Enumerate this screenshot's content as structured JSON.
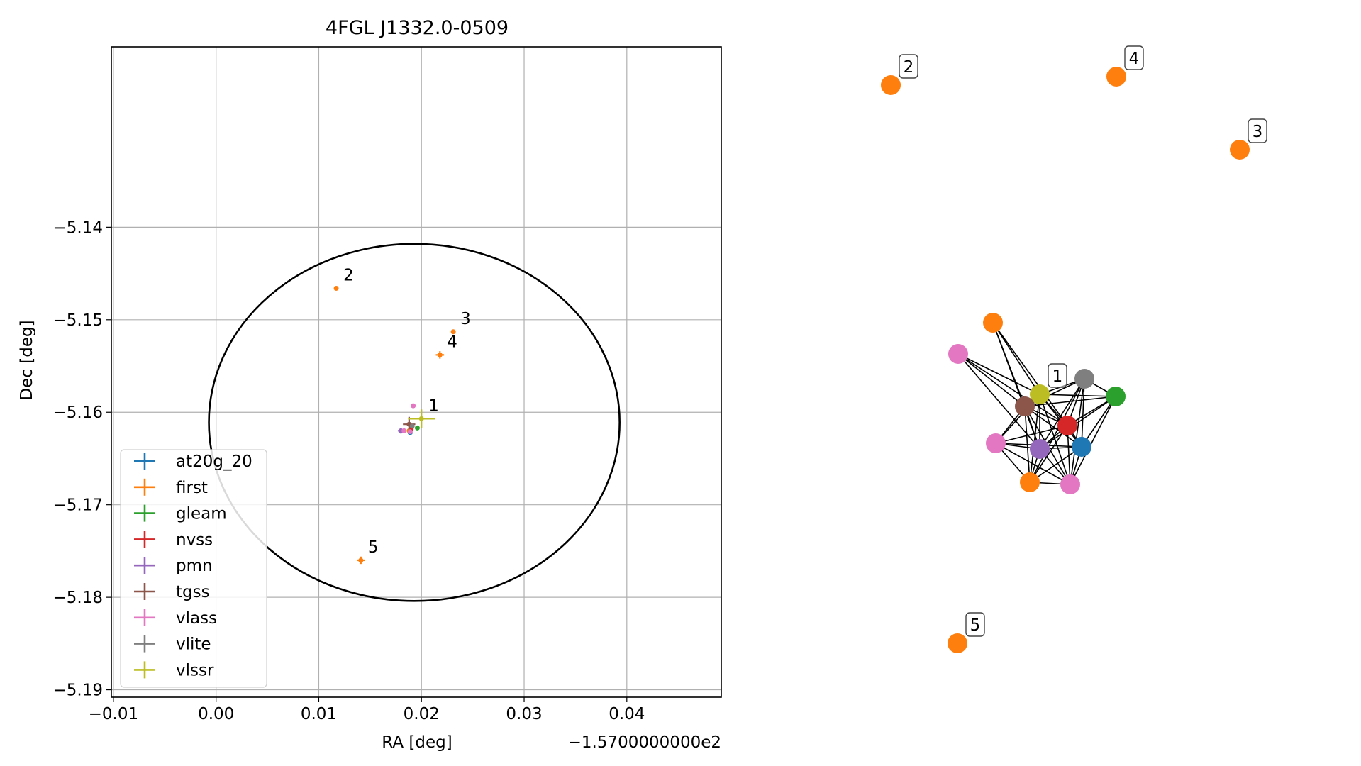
{
  "chart_data": [
    {
      "type": "scatter",
      "title": "4FGL J1332.0-0509",
      "xlabel": "RA [deg]",
      "ylabel": "Dec [deg]",
      "x_offset_label": "−1.5700000000e2",
      "xlim": [
        -0.0102,
        0.0492
      ],
      "ylim": [
        -5.1908,
        -5.1205
      ],
      "x_ticks": [
        -0.01,
        0.0,
        0.01,
        0.02,
        0.03,
        0.04
      ],
      "x_tick_labels": [
        "−0.01",
        "0.00",
        "0.01",
        "0.02",
        "0.03",
        "0.04"
      ],
      "y_ticks": [
        -5.14,
        -5.15,
        -5.16,
        -5.17,
        -5.18,
        -5.19
      ],
      "y_tick_labels": [
        "−5.14",
        "−5.15",
        "−5.16",
        "−5.17",
        "−5.18",
        "−5.19"
      ],
      "grid": true,
      "legend_position": "lower-left",
      "circle": {
        "center": [
          0.0193,
          -5.1611
        ],
        "radius_x": 0.02,
        "radius_y": 0.0193
      },
      "series": [
        {
          "name": "at20g_20",
          "color": "#1f77b4",
          "points": [
            {
              "x": 0.0189,
              "y": -5.1622,
              "ex": 0.0002,
              "ey": 0.0002
            }
          ]
        },
        {
          "name": "first",
          "color": "#ff7f0e",
          "points": [
            {
              "x": 0.0117,
              "y": -5.1466,
              "ex": 0.0002,
              "ey": 0.0002,
              "label": "2"
            },
            {
              "x": 0.0231,
              "y": -5.1513,
              "ex": 0.0002,
              "ey": 0.0002,
              "label": "3"
            },
            {
              "x": 0.0218,
              "y": -5.1538,
              "ex": 0.0004,
              "ey": 0.0004,
              "label": "4"
            },
            {
              "x": 0.0141,
              "y": -5.176,
              "ex": 0.0004,
              "ey": 0.0004,
              "label": "5"
            },
            {
              "x": 0.0188,
              "y": -5.162,
              "ex": 0.0002,
              "ey": 0.0002
            }
          ]
        },
        {
          "name": "gleam",
          "color": "#2ca02c",
          "points": [
            {
              "x": 0.0196,
              "y": -5.1617,
              "ex": 0.0002,
              "ey": 0.0002
            }
          ]
        },
        {
          "name": "nvss",
          "color": "#d62728",
          "points": [
            {
              "x": 0.019,
              "y": -5.1618,
              "ex": 0.0002,
              "ey": 0.0002
            }
          ]
        },
        {
          "name": "pmn",
          "color": "#9467bd",
          "points": [
            {
              "x": 0.018,
              "y": -5.162,
              "ex": 0.0003,
              "ey": 0.0003
            }
          ]
        },
        {
          "name": "tgss",
          "color": "#8c564b",
          "points": [
            {
              "x": 0.0188,
              "y": -5.1613,
              "ex": 0.0006,
              "ey": 0.0008
            }
          ]
        },
        {
          "name": "vlass",
          "color": "#e377c2",
          "points": [
            {
              "x": 0.0192,
              "y": -5.1593,
              "ex": 0.0002,
              "ey": 0.0002
            },
            {
              "x": 0.0183,
              "y": -5.162,
              "ex": 0.0002,
              "ey": 0.0002
            },
            {
              "x": 0.0189,
              "y": -5.1621,
              "ex": 0.0002,
              "ey": 0.0002
            }
          ]
        },
        {
          "name": "vlite",
          "color": "#7f7f7f",
          "points": [
            {
              "x": 0.0191,
              "y": -5.1615,
              "ex": 0.0002,
              "ey": 0.0002
            }
          ]
        },
        {
          "name": "vlssr",
          "color": "#bcbd22",
          "points": [
            {
              "x": 0.02,
              "y": -5.1607,
              "ex": 0.0013,
              "ey": 0.001,
              "label": "1"
            }
          ]
        }
      ]
    },
    {
      "type": "network",
      "nodes": [
        {
          "id": "n2",
          "color": "#ff7f0e",
          "label": "2"
        },
        {
          "id": "n4",
          "color": "#ff7f0e",
          "label": "4"
        },
        {
          "id": "n3",
          "color": "#ff7f0e",
          "label": "3"
        },
        {
          "id": "n5",
          "color": "#ff7f0e",
          "label": "5"
        },
        {
          "id": "first",
          "color": "#ff7f0e"
        },
        {
          "id": "vlassA",
          "color": "#e377c2"
        },
        {
          "id": "vlssr",
          "color": "#bcbd22",
          "label": "1"
        },
        {
          "id": "vlite",
          "color": "#7f7f7f"
        },
        {
          "id": "gleam",
          "color": "#2ca02c"
        },
        {
          "id": "tgss",
          "color": "#8c564b"
        },
        {
          "id": "nvss",
          "color": "#d62728"
        },
        {
          "id": "vlassB",
          "color": "#e377c2"
        },
        {
          "id": "pmn",
          "color": "#9467bd"
        },
        {
          "id": "at20g",
          "color": "#1f77b4"
        },
        {
          "id": "firstB",
          "color": "#ff7f0e"
        },
        {
          "id": "vlassC",
          "color": "#e377c2"
        }
      ],
      "edges": [
        [
          "first",
          "vlssr"
        ],
        [
          "first",
          "tgss"
        ],
        [
          "first",
          "nvss"
        ],
        [
          "first",
          "pmn"
        ],
        [
          "vlassA",
          "vlssr"
        ],
        [
          "vlassA",
          "tgss"
        ],
        [
          "vlassA",
          "nvss"
        ],
        [
          "vlassA",
          "pmn"
        ],
        [
          "vlssr",
          "vlite"
        ],
        [
          "vlssr",
          "gleam"
        ],
        [
          "vlssr",
          "tgss"
        ],
        [
          "vlssr",
          "nvss"
        ],
        [
          "vlssr",
          "vlassB"
        ],
        [
          "vlssr",
          "pmn"
        ],
        [
          "vlssr",
          "at20g"
        ],
        [
          "vlssr",
          "firstB"
        ],
        [
          "vlssr",
          "vlassC"
        ],
        [
          "vlite",
          "gleam"
        ],
        [
          "vlite",
          "tgss"
        ],
        [
          "vlite",
          "nvss"
        ],
        [
          "vlite",
          "pmn"
        ],
        [
          "vlite",
          "at20g"
        ],
        [
          "vlite",
          "firstB"
        ],
        [
          "vlite",
          "vlassC"
        ],
        [
          "gleam",
          "tgss"
        ],
        [
          "gleam",
          "nvss"
        ],
        [
          "gleam",
          "pmn"
        ],
        [
          "gleam",
          "at20g"
        ],
        [
          "gleam",
          "vlassC"
        ],
        [
          "tgss",
          "nvss"
        ],
        [
          "tgss",
          "vlassB"
        ],
        [
          "tgss",
          "pmn"
        ],
        [
          "tgss",
          "at20g"
        ],
        [
          "tgss",
          "firstB"
        ],
        [
          "tgss",
          "vlassC"
        ],
        [
          "nvss",
          "vlassB"
        ],
        [
          "nvss",
          "pmn"
        ],
        [
          "nvss",
          "at20g"
        ],
        [
          "nvss",
          "firstB"
        ],
        [
          "nvss",
          "vlassC"
        ],
        [
          "vlassB",
          "pmn"
        ],
        [
          "vlassB",
          "at20g"
        ],
        [
          "vlassB",
          "firstB"
        ],
        [
          "vlassB",
          "vlassC"
        ],
        [
          "pmn",
          "at20g"
        ],
        [
          "pmn",
          "firstB"
        ],
        [
          "pmn",
          "vlassC"
        ],
        [
          "at20g",
          "firstB"
        ],
        [
          "at20g",
          "vlassC"
        ],
        [
          "firstB",
          "vlassC"
        ]
      ]
    }
  ]
}
